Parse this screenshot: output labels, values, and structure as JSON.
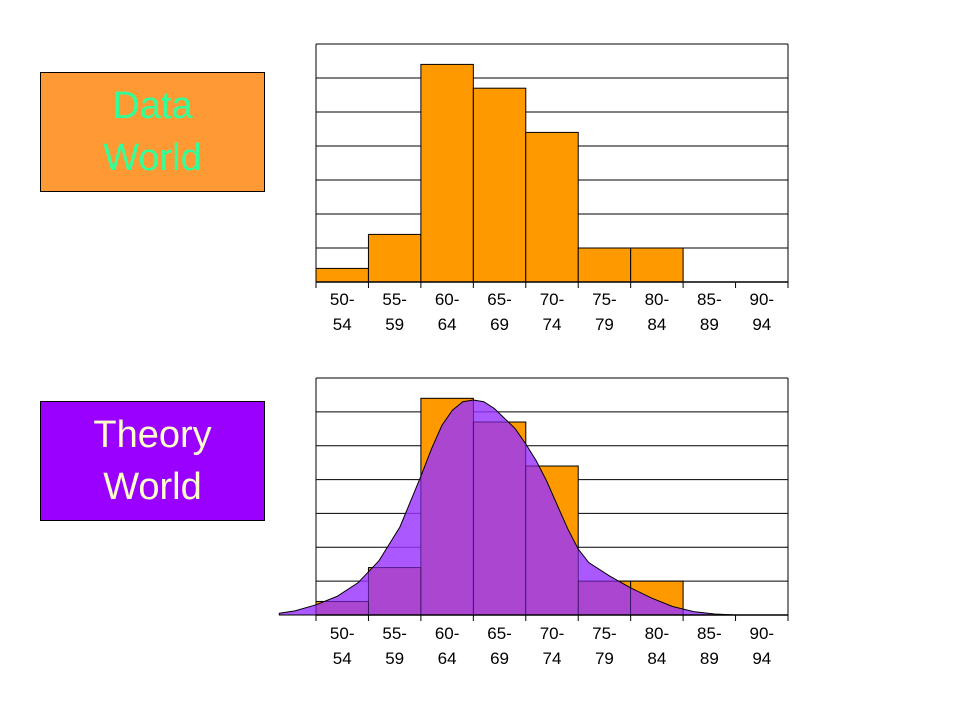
{
  "data_world": {
    "line1": "Data",
    "line2": "World",
    "bg_color": "#FF9933",
    "text_color": "#33FF99"
  },
  "theory_world": {
    "line1": "Theory",
    "line2": "World",
    "bg_color": "#9900FF",
    "text_color": "#FFFFCC"
  },
  "colors": {
    "bar_fill": "#FF9900",
    "curve_fill": "#9933FF",
    "grid": "#000000"
  },
  "chart_data": [
    {
      "type": "bar",
      "categories": [
        [
          "50-",
          "54"
        ],
        [
          "55-",
          "59"
        ],
        [
          "60-",
          "64"
        ],
        [
          "65-",
          "69"
        ],
        [
          "70-",
          "74"
        ],
        [
          "75-",
          "79"
        ],
        [
          "80-",
          "84"
        ],
        [
          "85-",
          "89"
        ],
        [
          "90-",
          "94"
        ]
      ],
      "values": [
        0.4,
        1.4,
        6.4,
        5.7,
        4.4,
        1.0,
        1.0,
        0,
        0
      ],
      "ylim": [
        0,
        7
      ],
      "grid": true,
      "title": "",
      "xlabel": "",
      "ylabel": ""
    },
    {
      "type": "area",
      "categories": [
        [
          "50-",
          "54"
        ],
        [
          "55-",
          "59"
        ],
        [
          "60-",
          "64"
        ],
        [
          "65-",
          "69"
        ],
        [
          "70-",
          "74"
        ],
        [
          "75-",
          "79"
        ],
        [
          "80-",
          "84"
        ],
        [
          "85-",
          "89"
        ],
        [
          "90-",
          "94"
        ]
      ],
      "values": [
        0.4,
        1.4,
        6.4,
        5.7,
        4.4,
        1.0,
        1.0,
        0,
        0
      ],
      "curve": {
        "x": [
          46.5,
          48,
          50,
          52,
          54,
          56,
          58,
          60,
          61,
          62,
          63,
          64,
          65,
          66,
          67,
          68,
          69,
          70,
          71,
          72,
          73,
          74,
          75,
          76,
          78,
          80,
          82,
          84,
          86,
          88,
          90
        ],
        "y": [
          0.05,
          0.12,
          0.3,
          0.55,
          0.95,
          1.6,
          2.6,
          4.1,
          4.9,
          5.6,
          6.05,
          6.3,
          6.35,
          6.3,
          6.1,
          5.8,
          5.5,
          5.05,
          4.55,
          3.95,
          3.25,
          2.55,
          1.95,
          1.55,
          1.15,
          0.8,
          0.5,
          0.25,
          0.1,
          0.03,
          0.0
        ]
      },
      "ylim": [
        0,
        7
      ],
      "grid": true,
      "title": "",
      "xlabel": "",
      "ylabel": ""
    }
  ]
}
